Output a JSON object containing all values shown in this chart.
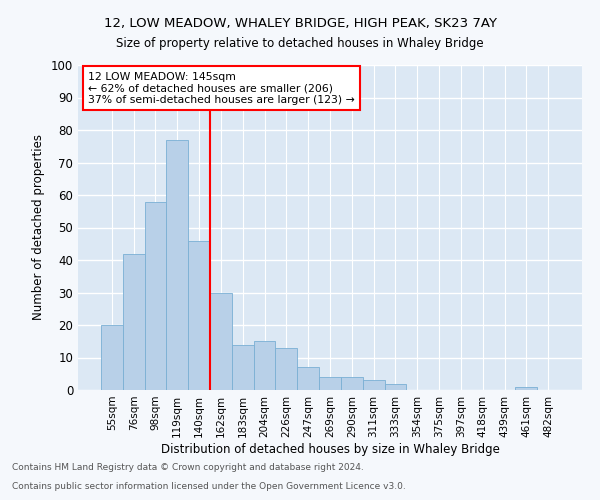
{
  "title": "12, LOW MEADOW, WHALEY BRIDGE, HIGH PEAK, SK23 7AY",
  "subtitle": "Size of property relative to detached houses in Whaley Bridge",
  "xlabel": "Distribution of detached houses by size in Whaley Bridge",
  "ylabel": "Number of detached properties",
  "bar_color": "#b8d0e8",
  "bar_edge_color": "#7aafd4",
  "background_color": "#dce8f4",
  "fig_background": "#f5f8fc",
  "grid_color": "#ffffff",
  "categories": [
    "55sqm",
    "76sqm",
    "98sqm",
    "119sqm",
    "140sqm",
    "162sqm",
    "183sqm",
    "204sqm",
    "226sqm",
    "247sqm",
    "269sqm",
    "290sqm",
    "311sqm",
    "333sqm",
    "354sqm",
    "375sqm",
    "397sqm",
    "418sqm",
    "439sqm",
    "461sqm",
    "482sqm"
  ],
  "values": [
    20,
    42,
    58,
    77,
    46,
    30,
    14,
    15,
    13,
    7,
    4,
    4,
    3,
    2,
    0,
    0,
    0,
    0,
    0,
    1,
    0
  ],
  "property_label": "12 LOW MEADOW: 145sqm",
  "annotation_line1": "← 62% of detached houses are smaller (206)",
  "annotation_line2": "37% of semi-detached houses are larger (123) →",
  "vline_x_index": 4.5,
  "ylim": [
    0,
    100
  ],
  "footnote1": "Contains HM Land Registry data © Crown copyright and database right 2024.",
  "footnote2": "Contains public sector information licensed under the Open Government Licence v3.0."
}
